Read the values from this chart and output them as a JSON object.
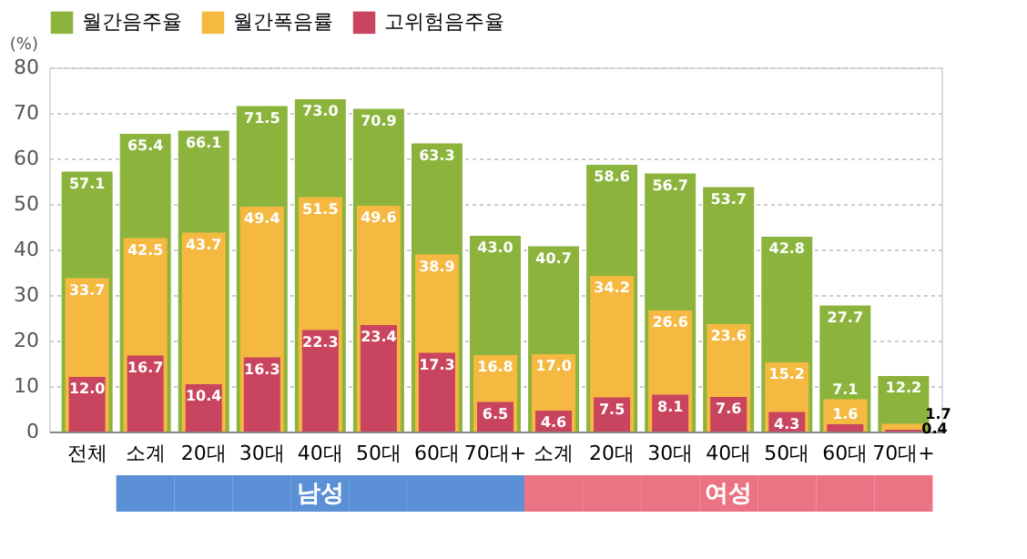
{
  "chart_data": {
    "type": "bar",
    "ylabel": "(%)",
    "categories": [
      "전체",
      "소계",
      "20대",
      "30대",
      "40대",
      "50대",
      "60대",
      "70대+",
      "소계",
      "20대",
      "30대",
      "40대",
      "50대",
      "60대",
      "70대+"
    ],
    "series": [
      {
        "name": "월간음주율",
        "color": "#8cb43c",
        "values": [
          57.1,
          65.4,
          66.1,
          71.5,
          73.0,
          70.9,
          63.3,
          43.0,
          40.7,
          58.6,
          56.7,
          53.7,
          42.8,
          27.7,
          12.2
        ],
        "value_labels": [
          "57.1",
          "65.4",
          "66.1",
          "71.5",
          "73.0",
          "70.9",
          "63.3",
          "43.0",
          "40.7",
          "58.6",
          "56.7",
          "53.7",
          "42.8",
          "27.7",
          "12.2"
        ]
      },
      {
        "name": "월간폭음률",
        "color": "#f5b942",
        "values": [
          33.7,
          42.5,
          43.7,
          49.4,
          51.5,
          49.6,
          38.9,
          16.8,
          17.0,
          34.2,
          26.6,
          23.6,
          15.2,
          7.1,
          1.7
        ],
        "value_labels": [
          "33.7",
          "42.5",
          "43.7",
          "49.4",
          "51.5",
          "49.6",
          "38.9",
          "16.8",
          "17.0",
          "34.2",
          "26.6",
          "23.6",
          "15.2",
          "7.1",
          "1.7"
        ]
      },
      {
        "name": "고위험음주율",
        "color": "#c9445e",
        "values": [
          12.0,
          16.7,
          10.4,
          16.3,
          22.3,
          23.4,
          17.3,
          6.5,
          4.6,
          7.5,
          8.1,
          7.6,
          4.3,
          1.6,
          0.4
        ],
        "value_labels": [
          "12.0",
          "16.7",
          "10.4",
          "16.3",
          "22.3",
          "23.4",
          "17.3",
          "6.5",
          "4.6",
          "7.5",
          "8.1",
          "7.6",
          "4.3",
          "1.6",
          "0.4"
        ]
      }
    ],
    "ylim": [
      0,
      80
    ],
    "yticks": [
      0,
      10,
      20,
      30,
      40,
      50,
      60,
      70,
      80
    ],
    "grid": "y",
    "legend": "top",
    "annotations": [
      "남성",
      "여성"
    ]
  }
}
